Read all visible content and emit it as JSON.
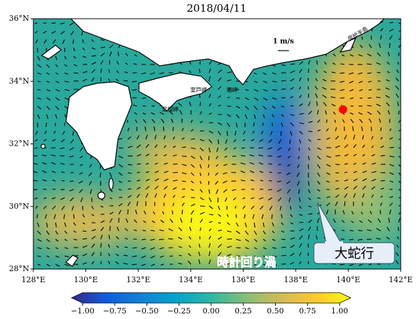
{
  "title": "2018/04/11",
  "map": {
    "xlim": [
      128,
      142
    ],
    "ylim": [
      28,
      36
    ],
    "xticks": [
      {
        "value": 128,
        "label": "128°E"
      },
      {
        "value": 130,
        "label": "130°E"
      },
      {
        "value": 132,
        "label": "132°E"
      },
      {
        "value": 134,
        "label": "134°E"
      },
      {
        "value": 136,
        "label": "136°E"
      },
      {
        "value": 138,
        "label": "138°E"
      },
      {
        "value": 140,
        "label": "140°E"
      },
      {
        "value": 142,
        "label": "142°E"
      }
    ],
    "yticks": [
      {
        "value": 28,
        "label": "28°N"
      },
      {
        "value": 30,
        "label": "30°N"
      },
      {
        "value": 32,
        "label": "32°N"
      },
      {
        "value": 34,
        "label": "34°N"
      },
      {
        "value": 36,
        "label": "36°N"
      }
    ]
  },
  "colorbar": {
    "lim": [
      -1,
      1
    ],
    "ticks": [
      {
        "value": -1,
        "label": "−1.00"
      },
      {
        "value": -0.75,
        "label": "−0.75"
      },
      {
        "value": -0.5,
        "label": "−0.50"
      },
      {
        "value": -0.25,
        "label": "−0.25"
      },
      {
        "value": 0,
        "label": "0.00"
      },
      0.25,
      {
        "value": 0.5,
        "label": "0.50"
      },
      0.75,
      {
        "value": 1,
        "label": "1.00"
      }
    ]
  },
  "annotations": {
    "scale_label": "1 m/s",
    "meander": "大蛇行",
    "eddy": "時計回り渦"
  },
  "places": [
    "足摺岬",
    "室戸岬",
    "潮岬",
    "房総半島"
  ],
  "marker": {
    "lon": 139.8,
    "lat": 33.1,
    "color": "#ff0000"
  }
}
